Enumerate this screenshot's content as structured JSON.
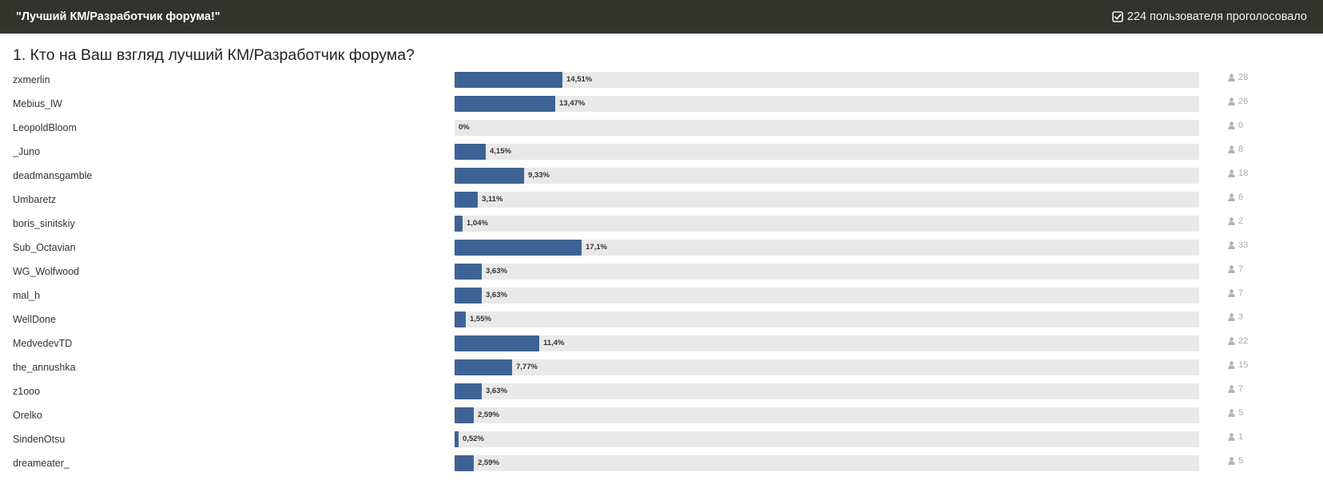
{
  "header": {
    "title": "\"Лучший КМ/Разработчик форума!\"",
    "votes_text": "224 пользователя проголосовало",
    "votes_icon": "check-square-icon"
  },
  "question": {
    "title": "1. Кто на Ваш взгляд лучший КМ/Разработчик форума?"
  },
  "colors": {
    "header_bg": "#33332d",
    "bar_fill": "#3d6396",
    "bar_track": "#e9e9e9"
  },
  "count_icon": "user-icon",
  "options": [
    {
      "name": "zxmerlin",
      "percent_label": "14,51%",
      "percent": 14.51,
      "count": "28"
    },
    {
      "name": "Mebius_lW",
      "percent_label": "13,47%",
      "percent": 13.47,
      "count": "26"
    },
    {
      "name": "LeopoldBloom",
      "percent_label": "0%",
      "percent": 0,
      "count": "0"
    },
    {
      "name": "_Juno",
      "percent_label": "4,15%",
      "percent": 4.15,
      "count": "8"
    },
    {
      "name": "deadmansgamble",
      "percent_label": "9,33%",
      "percent": 9.33,
      "count": "18"
    },
    {
      "name": "Umbaretz",
      "percent_label": "3,11%",
      "percent": 3.11,
      "count": "6"
    },
    {
      "name": "boris_sinitskiy",
      "percent_label": "1,04%",
      "percent": 1.04,
      "count": "2"
    },
    {
      "name": "Sub_Octavian",
      "percent_label": "17,1%",
      "percent": 17.1,
      "count": "33"
    },
    {
      "name": "WG_Wolfwood",
      "percent_label": "3,63%",
      "percent": 3.63,
      "count": "7"
    },
    {
      "name": "mal_h",
      "percent_label": "3,63%",
      "percent": 3.63,
      "count": "7"
    },
    {
      "name": "WellDone",
      "percent_label": "1,55%",
      "percent": 1.55,
      "count": "3"
    },
    {
      "name": "MedvedevTD",
      "percent_label": "11,4%",
      "percent": 11.4,
      "count": "22"
    },
    {
      "name": "the_annushka",
      "percent_label": "7,77%",
      "percent": 7.77,
      "count": "15"
    },
    {
      "name": "z1ooo",
      "percent_label": "3,63%",
      "percent": 3.63,
      "count": "7"
    },
    {
      "name": "Orelko",
      "percent_label": "2,59%",
      "percent": 2.59,
      "count": "5"
    },
    {
      "name": "SindenOtsu",
      "percent_label": "0,52%",
      "percent": 0.52,
      "count": "1"
    },
    {
      "name": "dreameater_",
      "percent_label": "2,59%",
      "percent": 2.59,
      "count": "5"
    }
  ]
}
